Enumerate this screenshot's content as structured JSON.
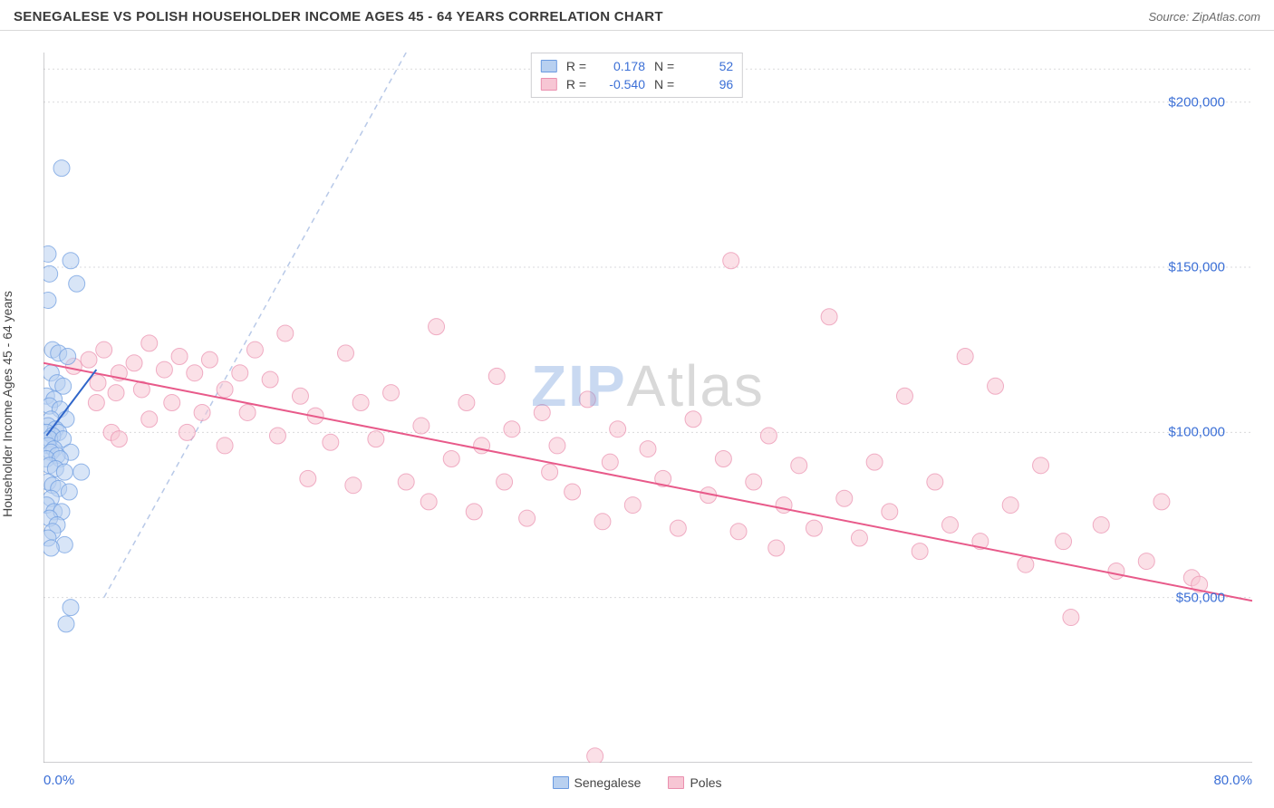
{
  "title": "SENEGALESE VS POLISH HOUSEHOLDER INCOME AGES 45 - 64 YEARS CORRELATION CHART",
  "source": "Source: ZipAtlas.com",
  "ylabel": "Householder Income Ages 45 - 64 years",
  "watermark_zip": "ZIP",
  "watermark_atlas": "Atlas",
  "xlim": [
    0,
    80
  ],
  "ylim": [
    0,
    215000
  ],
  "x_tick_labels": {
    "min": "0.0%",
    "max": "80.0%"
  },
  "x_minor_ticks_pct": [
    5,
    10,
    15,
    20,
    25,
    30,
    35,
    40,
    45,
    50,
    55,
    60,
    65,
    70,
    75
  ],
  "y_ticks": [
    {
      "v": 50000,
      "label": "$50,000"
    },
    {
      "v": 100000,
      "label": "$100,000"
    },
    {
      "v": 150000,
      "label": "$150,000"
    },
    {
      "v": 200000,
      "label": "$200,000"
    }
  ],
  "y_grid_values": [
    50000,
    100000,
    150000,
    200000,
    210000
  ],
  "colors": {
    "series_a_fill": "#b8d0f0",
    "series_a_stroke": "#6a9ae0",
    "series_b_fill": "#f7c6d4",
    "series_b_stroke": "#ea8fae",
    "series_a_line": "#2f65c9",
    "series_b_line": "#e85a8a",
    "grid": "#d9d9dc",
    "axis": "#9c9ca0",
    "tick_text": "#3b6fd6",
    "diag_line": "#b8c9e8"
  },
  "marker_radius": 9,
  "marker_opacity": 0.55,
  "line_width": 2,
  "legend_top": {
    "rows": [
      {
        "swatch": "a",
        "r_label": "R =",
        "r_val": "0.178",
        "n_label": "N =",
        "n_val": "52"
      },
      {
        "swatch": "b",
        "r_label": "R =",
        "r_val": "-0.540",
        "n_label": "N =",
        "n_val": "96"
      }
    ]
  },
  "legend_bottom": [
    {
      "swatch": "a",
      "label": "Senegalese"
    },
    {
      "swatch": "b",
      "label": "Poles"
    }
  ],
  "trend_lines": {
    "a": {
      "x1": 0.2,
      "y1": 99000,
      "x2": 3.5,
      "y2": 119000
    },
    "b": {
      "x1": 0.0,
      "y1": 121000,
      "x2": 80.0,
      "y2": 49000
    }
  },
  "diag_line": {
    "x1": 4,
    "y1": 50000,
    "x2": 24,
    "y2": 215000
  },
  "series_a": [
    [
      1.2,
      180000
    ],
    [
      0.3,
      154000
    ],
    [
      1.8,
      152000
    ],
    [
      0.4,
      148000
    ],
    [
      2.2,
      145000
    ],
    [
      0.3,
      140000
    ],
    [
      0.6,
      125000
    ],
    [
      1.0,
      124000
    ],
    [
      1.6,
      123000
    ],
    [
      0.5,
      118000
    ],
    [
      0.9,
      115000
    ],
    [
      1.3,
      114000
    ],
    [
      0.2,
      111000
    ],
    [
      0.7,
      110000
    ],
    [
      0.4,
      108000
    ],
    [
      1.1,
      107000
    ],
    [
      0.5,
      104000
    ],
    [
      1.5,
      104000
    ],
    [
      0.3,
      102000
    ],
    [
      0.8,
      101000
    ],
    [
      0.2,
      100000
    ],
    [
      1.0,
      100000
    ],
    [
      0.6,
      99000
    ],
    [
      0.4,
      98000
    ],
    [
      1.3,
      98000
    ],
    [
      0.3,
      96000
    ],
    [
      0.7,
      95000
    ],
    [
      0.5,
      94000
    ],
    [
      1.8,
      94000
    ],
    [
      0.9,
      93000
    ],
    [
      0.2,
      92000
    ],
    [
      1.1,
      92000
    ],
    [
      0.4,
      90000
    ],
    [
      0.8,
      89000
    ],
    [
      1.4,
      88000
    ],
    [
      2.5,
      88000
    ],
    [
      0.3,
      85000
    ],
    [
      0.6,
      84000
    ],
    [
      1.0,
      83000
    ],
    [
      0.5,
      80000
    ],
    [
      1.7,
      82000
    ],
    [
      0.2,
      78000
    ],
    [
      0.7,
      76000
    ],
    [
      1.2,
      76000
    ],
    [
      0.4,
      74000
    ],
    [
      0.9,
      72000
    ],
    [
      0.6,
      70000
    ],
    [
      0.3,
      68000
    ],
    [
      1.4,
      66000
    ],
    [
      0.5,
      65000
    ],
    [
      1.8,
      47000
    ],
    [
      1.5,
      42000
    ]
  ],
  "series_b": [
    [
      2.0,
      120000
    ],
    [
      3.0,
      122000
    ],
    [
      3.5,
      109000
    ],
    [
      3.6,
      115000
    ],
    [
      4.0,
      125000
    ],
    [
      4.5,
      100000
    ],
    [
      4.8,
      112000
    ],
    [
      5.0,
      118000
    ],
    [
      5.0,
      98000
    ],
    [
      6.0,
      121000
    ],
    [
      6.5,
      113000
    ],
    [
      7.0,
      127000
    ],
    [
      7.0,
      104000
    ],
    [
      8.0,
      119000
    ],
    [
      8.5,
      109000
    ],
    [
      9.0,
      123000
    ],
    [
      9.5,
      100000
    ],
    [
      10.0,
      118000
    ],
    [
      10.5,
      106000
    ],
    [
      11.0,
      122000
    ],
    [
      12.0,
      113000
    ],
    [
      12.0,
      96000
    ],
    [
      13.0,
      118000
    ],
    [
      13.5,
      106000
    ],
    [
      14.0,
      125000
    ],
    [
      15.0,
      116000
    ],
    [
      15.5,
      99000
    ],
    [
      16.0,
      130000
    ],
    [
      17.0,
      111000
    ],
    [
      17.5,
      86000
    ],
    [
      18.0,
      105000
    ],
    [
      19.0,
      97000
    ],
    [
      20.0,
      124000
    ],
    [
      20.5,
      84000
    ],
    [
      21.0,
      109000
    ],
    [
      22.0,
      98000
    ],
    [
      23.0,
      112000
    ],
    [
      24.0,
      85000
    ],
    [
      25.0,
      102000
    ],
    [
      25.5,
      79000
    ],
    [
      26.0,
      132000
    ],
    [
      27.0,
      92000
    ],
    [
      28.0,
      109000
    ],
    [
      28.5,
      76000
    ],
    [
      29.0,
      96000
    ],
    [
      30.0,
      117000
    ],
    [
      30.5,
      85000
    ],
    [
      31.0,
      101000
    ],
    [
      32.0,
      74000
    ],
    [
      33.0,
      106000
    ],
    [
      33.5,
      88000
    ],
    [
      34.0,
      96000
    ],
    [
      35.0,
      82000
    ],
    [
      36.0,
      110000
    ],
    [
      37.0,
      73000
    ],
    [
      37.5,
      91000
    ],
    [
      38.0,
      101000
    ],
    [
      39.0,
      78000
    ],
    [
      40.0,
      95000
    ],
    [
      41.0,
      86000
    ],
    [
      42.0,
      71000
    ],
    [
      43.0,
      104000
    ],
    [
      44.0,
      81000
    ],
    [
      45.0,
      92000
    ],
    [
      45.5,
      152000
    ],
    [
      46.0,
      70000
    ],
    [
      47.0,
      85000
    ],
    [
      48.0,
      99000
    ],
    [
      48.5,
      65000
    ],
    [
      49.0,
      78000
    ],
    [
      50.0,
      90000
    ],
    [
      51.0,
      71000
    ],
    [
      52.0,
      135000
    ],
    [
      53.0,
      80000
    ],
    [
      54.0,
      68000
    ],
    [
      55.0,
      91000
    ],
    [
      56.0,
      76000
    ],
    [
      57.0,
      111000
    ],
    [
      58.0,
      64000
    ],
    [
      59.0,
      85000
    ],
    [
      60.0,
      72000
    ],
    [
      61.0,
      123000
    ],
    [
      62.0,
      67000
    ],
    [
      63.0,
      114000
    ],
    [
      64.0,
      78000
    ],
    [
      65.0,
      60000
    ],
    [
      66.0,
      90000
    ],
    [
      67.5,
      67000
    ],
    [
      68.0,
      44000
    ],
    [
      70.0,
      72000
    ],
    [
      71.0,
      58000
    ],
    [
      73.0,
      61000
    ],
    [
      74.0,
      79000
    ],
    [
      76.0,
      56000
    ],
    [
      76.5,
      54000
    ],
    [
      36.5,
      2000
    ]
  ]
}
